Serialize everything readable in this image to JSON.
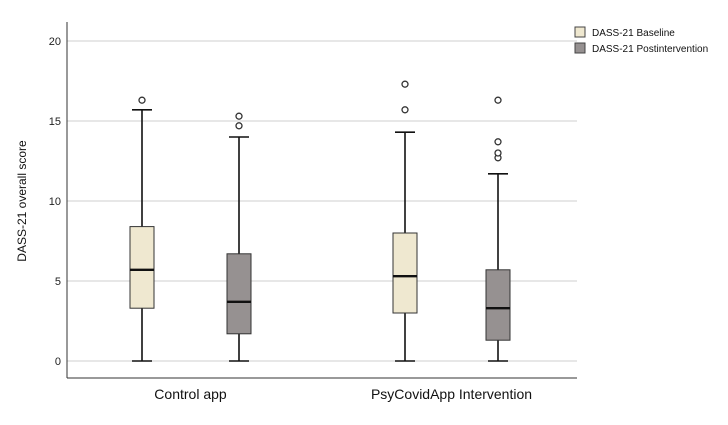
{
  "chart_data": {
    "type": "boxplot",
    "ylabel": "DASS-21 overall score",
    "ylim": [
      0,
      20
    ],
    "yticks": [
      0,
      5,
      10,
      15,
      20
    ],
    "grid": true,
    "legend_position": "top-right",
    "categories": [
      "Control app",
      "PsyCovidApp Intervention"
    ],
    "series": [
      {
        "name": "DASS-21  Baseline",
        "color": "#efe8d0",
        "boxes": [
          {
            "min": 0,
            "q1": 3.3,
            "median": 5.7,
            "q3": 8.4,
            "max": 15.7,
            "outliers": [
              16.3
            ]
          },
          {
            "min": 0,
            "q1": 3.0,
            "median": 5.3,
            "q3": 8.0,
            "max": 14.3,
            "outliers": [
              15.7,
              17.3
            ]
          }
        ]
      },
      {
        "name": "DASS-21 Postintervention",
        "color": "#969191",
        "boxes": [
          {
            "min": 0,
            "q1": 1.7,
            "median": 3.7,
            "q3": 6.7,
            "max": 14.0,
            "outliers": [
              14.7,
              15.3
            ]
          },
          {
            "min": 0,
            "q1": 1.3,
            "median": 3.3,
            "q3": 5.7,
            "max": 11.7,
            "outliers": [
              12.7,
              13.0,
              13.7,
              16.3
            ]
          }
        ]
      }
    ]
  }
}
